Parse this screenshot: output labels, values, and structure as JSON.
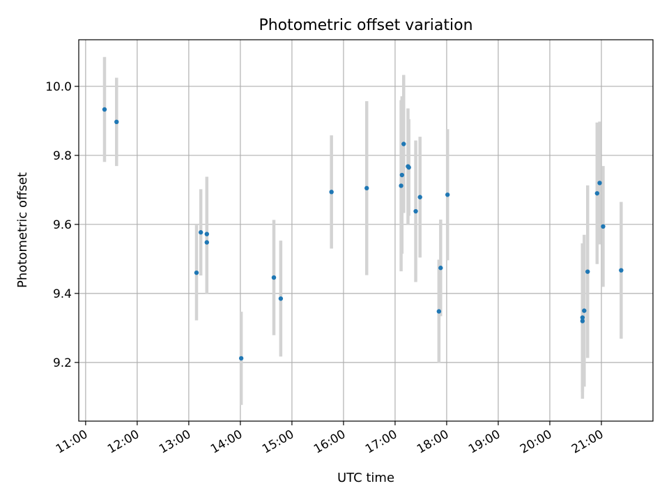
{
  "chart_data": {
    "type": "scatter",
    "title": "Photometric offset variation",
    "xlabel": "UTC time",
    "ylabel": "Photometric offset",
    "xlim": [
      "10:52",
      "22:00"
    ],
    "ylim": [
      9.03,
      10.135
    ],
    "x_ticks": [
      "11:00",
      "12:00",
      "13:00",
      "14:00",
      "15:00",
      "16:00",
      "17:00",
      "18:00",
      "19:00",
      "20:00",
      "21:00"
    ],
    "y_ticks": [
      9.2,
      9.4,
      9.6,
      9.8,
      10.0
    ],
    "y_tick_labels": [
      "9.2",
      "9.4",
      "9.6",
      "9.8",
      "10.0"
    ],
    "grid": true,
    "colors": {
      "point": "#1f77b4",
      "errorbar": "#d3d3d3",
      "grid": "#b0b0b0"
    },
    "series": [
      {
        "points": [
          {
            "x": "11:22",
            "y": 9.933,
            "err": 0.152
          },
          {
            "x": "11:36",
            "y": 9.897,
            "err": 0.128
          },
          {
            "x": "13:09",
            "y": 9.46,
            "err": 0.138
          },
          {
            "x": "13:14",
            "y": 9.577,
            "err": 0.125
          },
          {
            "x": "13:21",
            "y": 9.572,
            "err": 0.166
          },
          {
            "x": "13:21",
            "y": 9.548,
            "err": 0.15
          },
          {
            "x": "14:01",
            "y": 9.212,
            "err": 0.135
          },
          {
            "x": "14:39",
            "y": 9.446,
            "err": 0.167
          },
          {
            "x": "14:47",
            "y": 9.385,
            "err": 0.168
          },
          {
            "x": "15:46",
            "y": 9.694,
            "err": 0.164
          },
          {
            "x": "16:27",
            "y": 9.705,
            "err": 0.252
          },
          {
            "x": "17:07",
            "y": 9.712,
            "err": 0.248
          },
          {
            "x": "17:08",
            "y": 9.743,
            "err": 0.228
          },
          {
            "x": "17:10",
            "y": 9.833,
            "err": 0.2
          },
          {
            "x": "17:15",
            "y": 9.768,
            "err": 0.168
          },
          {
            "x": "17:16",
            "y": 9.765,
            "err": 0.14
          },
          {
            "x": "17:24",
            "y": 9.638,
            "err": 0.205
          },
          {
            "x": "17:29",
            "y": 9.679,
            "err": 0.175
          },
          {
            "x": "17:51",
            "y": 9.348,
            "err": 0.15
          },
          {
            "x": "17:53",
            "y": 9.474,
            "err": 0.14
          },
          {
            "x": "18:01",
            "y": 9.686,
            "err": 0.19
          },
          {
            "x": "20:38",
            "y": 9.32,
            "err": 0.225
          },
          {
            "x": "20:38",
            "y": 9.33,
            "err": 0.215
          },
          {
            "x": "20:40",
            "y": 9.35,
            "err": 0.22
          },
          {
            "x": "20:44",
            "y": 9.463,
            "err": 0.25
          },
          {
            "x": "20:55",
            "y": 9.69,
            "err": 0.205
          },
          {
            "x": "20:58",
            "y": 9.72,
            "err": 0.178
          },
          {
            "x": "21:02",
            "y": 9.594,
            "err": 0.175
          },
          {
            "x": "21:23",
            "y": 9.467,
            "err": 0.198
          }
        ]
      }
    ]
  }
}
